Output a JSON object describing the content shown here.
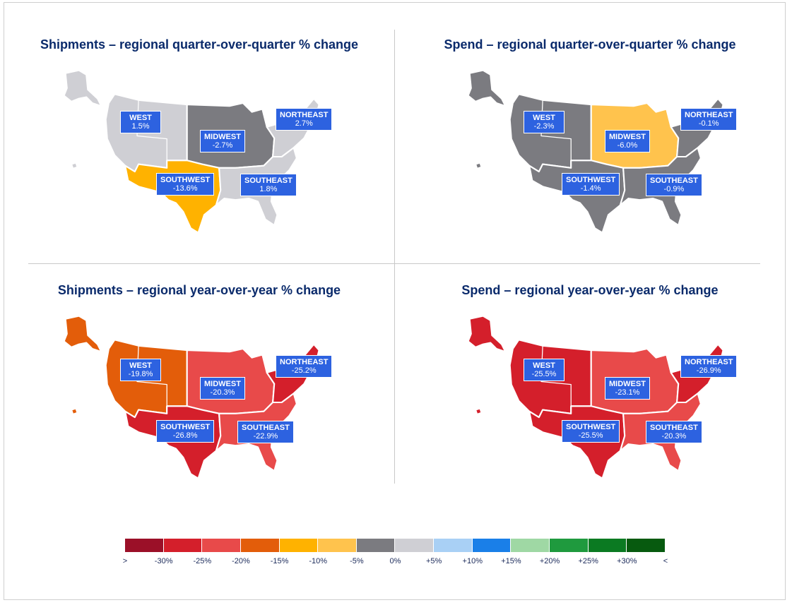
{
  "panels": [
    {
      "title": "Shipments – regional quarter-over-quarter % change",
      "colors": {
        "west": "#cfcfd4",
        "midwest": "#7b7b80",
        "northeast": "#cfcfd4",
        "southwest": "#ffb200",
        "southeast": "#cfcfd4",
        "alaska": "#cfcfd4",
        "hawaii": "#cfcfd4"
      },
      "labels": {
        "west": {
          "name": "WEST",
          "value": "1.5%"
        },
        "midwest": {
          "name": "MIDWEST",
          "value": "-2.7%"
        },
        "northeast": {
          "name": "NORTHEAST",
          "value": "2.7%"
        },
        "southwest": {
          "name": "SOUTHWEST",
          "value": "-13.6%"
        },
        "southeast": {
          "name": "SOUTHEAST",
          "value": "1.8%"
        }
      }
    },
    {
      "title": "Spend – regional quarter-over-quarter % change",
      "colors": {
        "west": "#7b7b80",
        "midwest": "#ffc34d",
        "northeast": "#7b7b80",
        "southwest": "#7b7b80",
        "southeast": "#7b7b80",
        "alaska": "#7b7b80",
        "hawaii": "#7b7b80"
      },
      "labels": {
        "west": {
          "name": "WEST",
          "value": "-2.3%"
        },
        "midwest": {
          "name": "MIDWEST",
          "value": "-6.0%"
        },
        "northeast": {
          "name": "NORTHEAST",
          "value": "-0.1%"
        },
        "southwest": {
          "name": "SOUTHWEST",
          "value": "-1.4%"
        },
        "southeast": {
          "name": "SOUTHEAST",
          "value": "-0.9%"
        }
      }
    },
    {
      "title": "Shipments – regional year-over-year % change",
      "colors": {
        "west": "#e35d0a",
        "midwest": "#e84a4a",
        "northeast": "#d41f2b",
        "southwest": "#d41f2b",
        "southeast": "#e84a4a",
        "alaska": "#e35d0a",
        "hawaii": "#e35d0a"
      },
      "labels": {
        "west": {
          "name": "WEST",
          "value": "-19.8%"
        },
        "midwest": {
          "name": "MIDWEST",
          "value": "-20.3%"
        },
        "northeast": {
          "name": "NORTHEAST",
          "value": "-25.2%"
        },
        "southwest": {
          "name": "SOUTHWEST",
          "value": "-26.8%"
        },
        "southeast": {
          "name": "SOUTHEAST",
          "value": "-22.9%"
        }
      }
    },
    {
      "title": "Spend – regional year-over-year % change",
      "colors": {
        "west": "#d41f2b",
        "midwest": "#e84a4a",
        "northeast": "#d41f2b",
        "southwest": "#d41f2b",
        "southeast": "#e84a4a",
        "alaska": "#d41f2b",
        "hawaii": "#d41f2b"
      },
      "labels": {
        "west": {
          "name": "WEST",
          "value": "-25.5%"
        },
        "midwest": {
          "name": "MIDWEST",
          "value": "-23.1%"
        },
        "northeast": {
          "name": "NORTHEAST",
          "value": "-26.9%"
        },
        "southwest": {
          "name": "SOUTHWEST",
          "value": "-25.5%"
        },
        "southeast": {
          "name": "SOUTHEAST",
          "value": "-20.3%"
        }
      }
    }
  ],
  "legend": {
    "colors": [
      "#9b1028",
      "#d41f2b",
      "#e84a4a",
      "#e35d0a",
      "#ffb200",
      "#ffc34d",
      "#7b7b80",
      "#cfcfd4",
      "#a9d0f5",
      "#1a7fe8",
      "#9fd8a4",
      "#1f9a3e",
      "#0b7a22",
      "#075a0f"
    ],
    "ticks": [
      ">",
      "-30%",
      "-25%",
      "-20%",
      "-15%",
      "-10%",
      "-5%",
      "0%",
      "+5%",
      "+10%",
      "+15%",
      "+20%",
      "+25%",
      "+30%",
      "<"
    ]
  }
}
